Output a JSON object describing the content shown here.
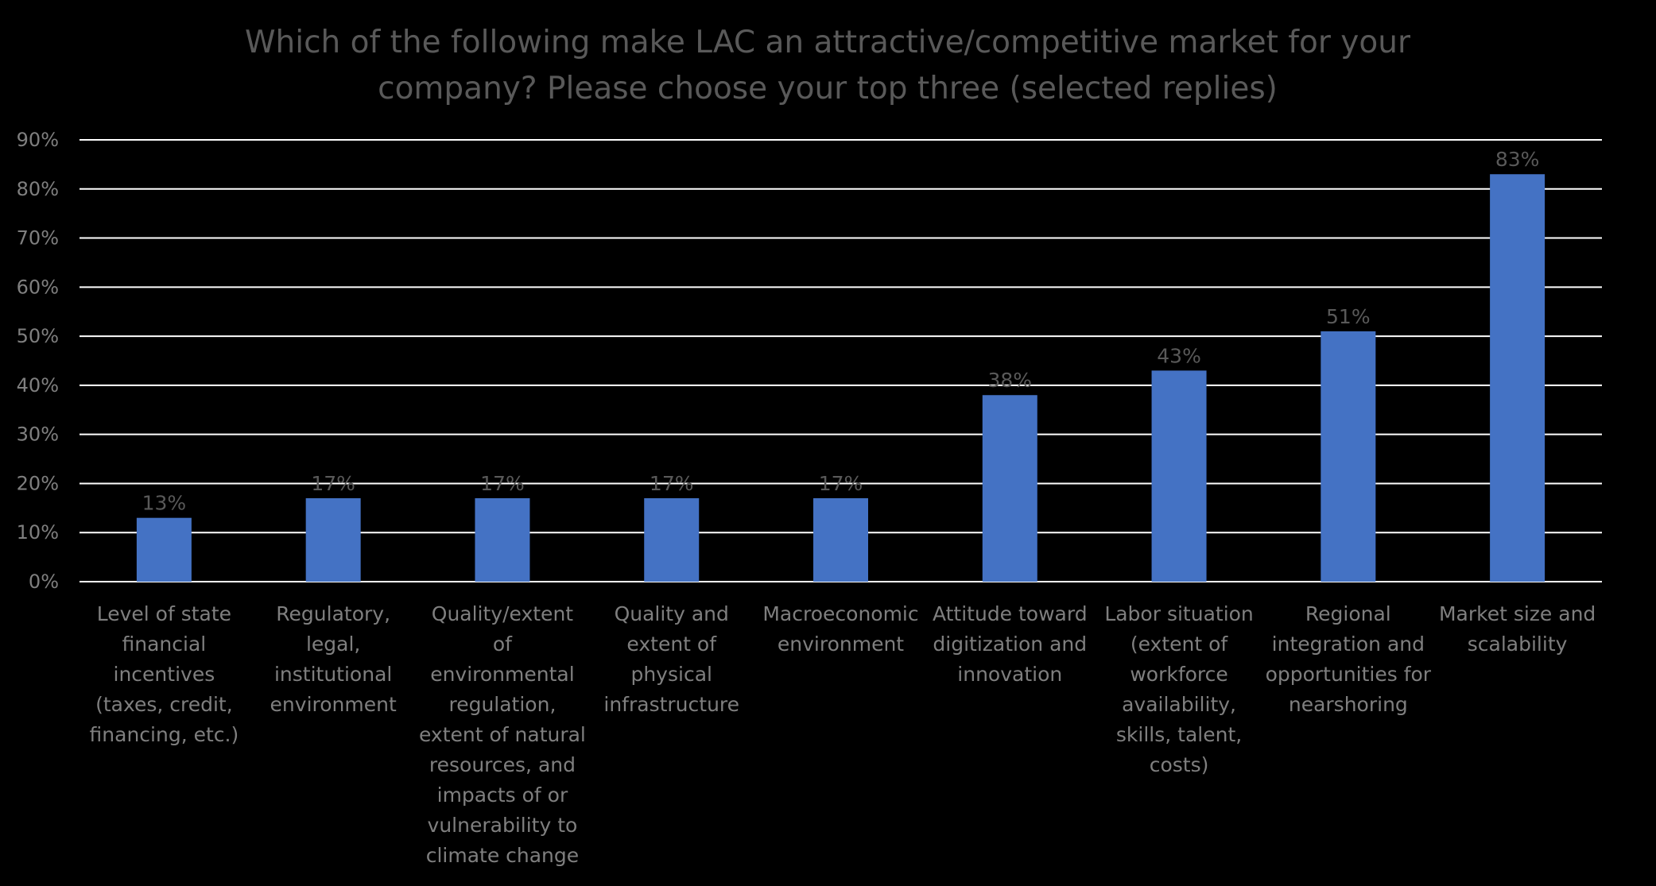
{
  "chart_data": {
    "type": "bar",
    "title_lines": [
      "Which of the following make LAC an attractive/competitive market for your",
      "company? Please choose your top three (selected replies)"
    ],
    "categories": [
      [
        "Level of state",
        "financial",
        "incentives",
        "(taxes, credit,",
        "financing, etc.)"
      ],
      [
        "Regulatory,",
        "legal,",
        "institutional",
        "environment"
      ],
      [
        "Quality/extent",
        "of",
        "environmental",
        "regulation,",
        "extent of natural",
        "resources, and",
        "impacts of or",
        "vulnerability to",
        "climate change"
      ],
      [
        "Quality and",
        "extent of",
        "physical",
        "infrastructure"
      ],
      [
        "Macroeconomic",
        "environment"
      ],
      [
        "Attitude toward",
        "digitization and",
        "innovation"
      ],
      [
        "Labor situation",
        "(extent of",
        "workforce",
        "availability,",
        "skills, talent,",
        "costs)"
      ],
      [
        "Regional",
        "integration and",
        "opportunities for",
        "nearshoring"
      ],
      [
        "Market size and",
        "scalability"
      ]
    ],
    "values": [
      13,
      17,
      17,
      17,
      17,
      38,
      43,
      51,
      83
    ],
    "data_labels": [
      "13%",
      "17%",
      "17%",
      "17%",
      "17%",
      "38%",
      "43%",
      "51%",
      "83%"
    ],
    "y_ticks": [
      "0%",
      "10%",
      "20%",
      "30%",
      "40%",
      "50%",
      "60%",
      "70%",
      "80%",
      "90%"
    ],
    "ylim": [
      0,
      90
    ],
    "y_step": 10,
    "grid": true,
    "legend": "none",
    "colors": {
      "background": "#000000",
      "bar": "#4472c4",
      "gridline": "#ffffff",
      "title": "#595959",
      "axis_text": "#7f7f7f"
    }
  }
}
